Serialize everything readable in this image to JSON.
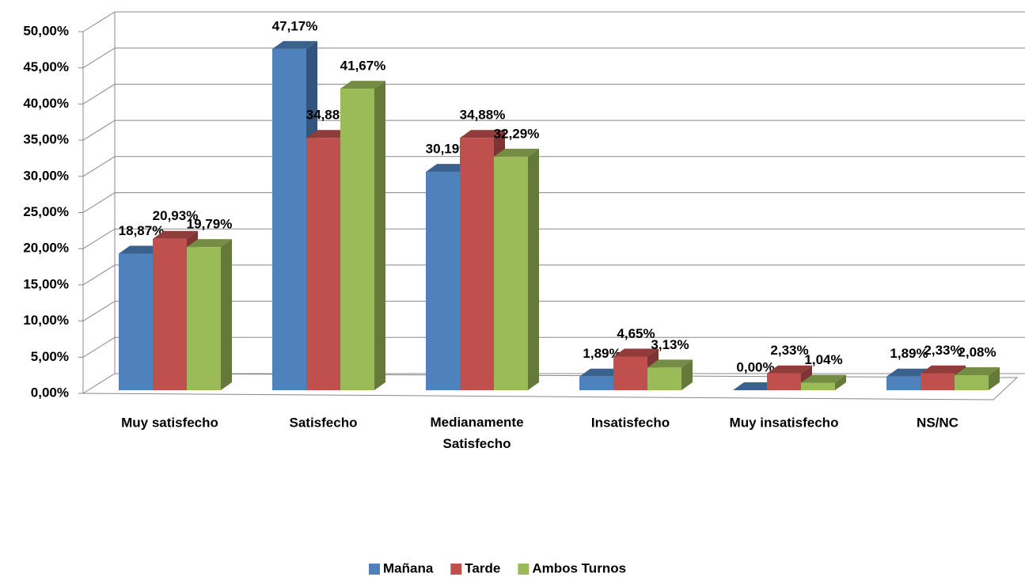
{
  "chart_data": {
    "type": "bar3d",
    "categories": [
      "Muy satisfecho",
      "Satisfecho",
      "Medianamente Satisfecho",
      "Insatisfecho",
      "Muy insatisfecho",
      "NS/NC"
    ],
    "series": [
      {
        "name": "Mañana",
        "color": "#4f81bd",
        "values": [
          18.87,
          47.17,
          30.19,
          1.89,
          0,
          1.89
        ],
        "value_labels": [
          "18,87%",
          "47,17%",
          "30,19%",
          "1,89%",
          "0,00%",
          "1,89%"
        ]
      },
      {
        "name": "Tarde",
        "color": "#c0504d",
        "values": [
          20.93,
          34.88,
          34.88,
          4.65,
          2.33,
          2.33
        ],
        "value_labels": [
          "20,93%",
          "34,88%",
          "34,88%",
          "4,65%",
          "2,33%",
          "2,33%"
        ]
      },
      {
        "name": "Ambos Turnos",
        "color": "#9bbb59",
        "values": [
          19.79,
          41.67,
          32.29,
          3.13,
          1.04,
          2.08
        ],
        "value_labels": [
          "19,79%",
          "41,67%",
          "32,29%",
          "3,13%",
          "1,04%",
          "2,08%"
        ]
      }
    ],
    "ylim": [
      0,
      50
    ],
    "yticks": [
      {
        "value": 0,
        "label": "0,00%"
      },
      {
        "value": 5,
        "label": "5,00%"
      },
      {
        "value": 10,
        "label": "10,00%"
      },
      {
        "value": 15,
        "label": "15,00%"
      },
      {
        "value": 20,
        "label": "20,00%"
      },
      {
        "value": 25,
        "label": "25,00%"
      },
      {
        "value": 30,
        "label": "30,00%"
      },
      {
        "value": 35,
        "label": "35,00%"
      },
      {
        "value": 40,
        "label": "40,00%"
      },
      {
        "value": 45,
        "label": "45,00%"
      },
      {
        "value": 50,
        "label": "50,00%"
      }
    ],
    "grid": true,
    "legend": "bottom"
  }
}
